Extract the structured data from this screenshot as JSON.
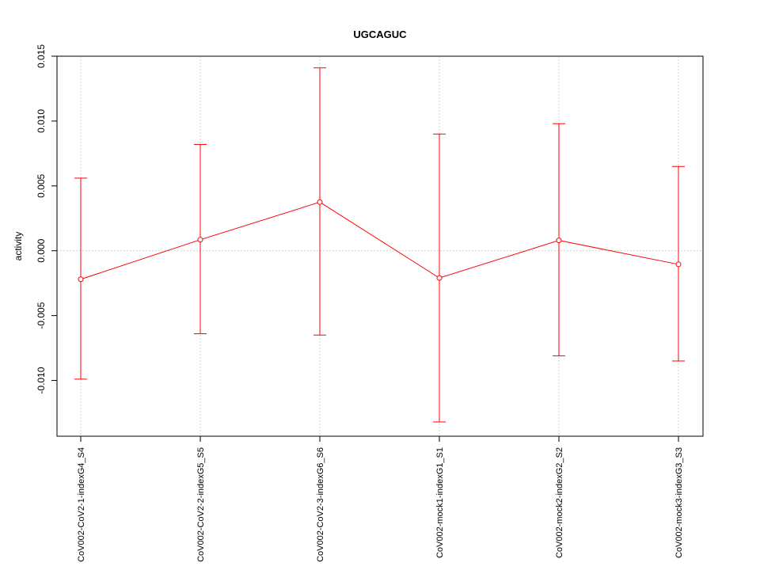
{
  "chart_data": {
    "type": "line",
    "title": "UGCAGUC",
    "xlabel": "",
    "ylabel": "activity",
    "categories": [
      "CoV002-CoV2-1-indexG4_S4",
      "CoV002-CoV2-2-indexG5_S5",
      "CoV002-CoV2-3-indexG6_S6",
      "CoV002-mock1-indexG1_S1",
      "CoV002-mock2-indexG2_S2",
      "CoV002-mock3-indexG3_S3"
    ],
    "values": [
      -0.0022,
      0.00085,
      0.00375,
      -0.0021,
      0.0008,
      -0.00105
    ],
    "error_low": [
      -0.0099,
      -0.0064,
      -0.0065,
      -0.0132,
      -0.0081,
      -0.0085
    ],
    "error_high": [
      0.0056,
      0.0082,
      0.0141,
      0.009,
      0.0098,
      0.0065
    ],
    "ylim": [
      -0.0143,
      0.015
    ],
    "yticks": [
      -0.01,
      -0.005,
      0.0,
      0.005,
      0.01,
      0.015
    ],
    "ytick_labels": [
      "-0.010",
      "-0.005",
      "0.000",
      "0.005",
      "0.010",
      "0.015"
    ],
    "grid": true,
    "series_color": "#ff0000",
    "grid_color": "#d3d3d3"
  }
}
